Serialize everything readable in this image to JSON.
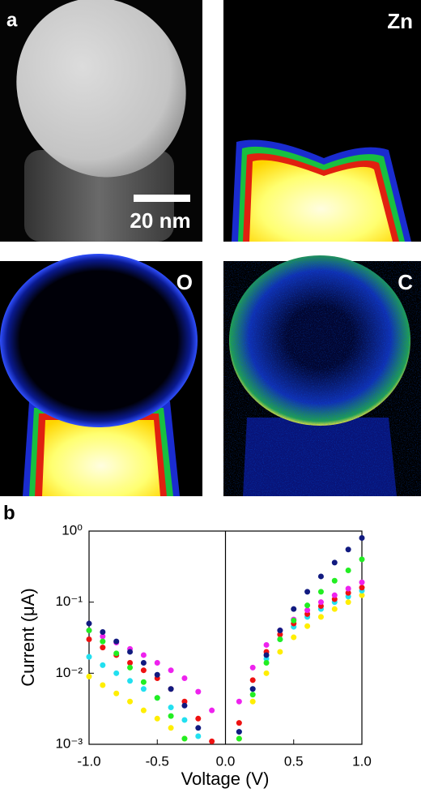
{
  "panels": [
    {
      "label": "a"
    },
    {
      "label": "Zn"
    },
    {
      "label": "O"
    },
    {
      "label": "C"
    }
  ],
  "scale_bar": "20 nm",
  "chart_data": {
    "type": "scatter",
    "label": "b",
    "x_label": "Voltage (V)",
    "y_label": "Current (μA)",
    "yscale": "log",
    "grid": false,
    "xlim": [
      -1,
      1
    ],
    "xticks": [
      {
        "value": -1,
        "label": "-1.0"
      },
      -0.5,
      {
        "value": 0,
        "label": "0.0"
      },
      0.5,
      {
        "value": 1,
        "label": "1.0"
      }
    ],
    "ylim": [
      0.001,
      1
    ],
    "yticks": [
      {
        "value": 0.001,
        "label": "10⁻³"
      },
      {
        "value": 0.01,
        "label": "10⁻²"
      },
      {
        "value": 0.1,
        "label": "10⁻¹"
      },
      {
        "value": 1,
        "label": "10⁰"
      }
    ],
    "x": [
      -1,
      -0.9,
      -0.8,
      -0.7,
      -0.6,
      -0.5,
      -0.4,
      -0.3,
      -0.2,
      -0.1,
      0,
      0.1,
      0.2,
      0.3,
      0.4,
      0.5,
      0.6,
      0.7,
      0.8,
      0.9,
      1
    ],
    "series": [
      {
        "color": "#ffee00",
        "values": [
          0.009,
          0.0068,
          0.0052,
          0.004,
          0.003,
          0.0023,
          0.0017,
          0.0012,
          null,
          null,
          null,
          0.0012,
          0.004,
          0.01,
          0.02,
          0.032,
          0.046,
          0.062,
          0.08,
          0.1,
          0.125
        ]
      },
      {
        "color": "#22e0f0",
        "values": [
          0.017,
          0.013,
          0.01,
          0.0078,
          0.006,
          0.0045,
          0.0033,
          0.0022,
          0.0013,
          null,
          null,
          0.0015,
          0.006,
          0.016,
          0.03,
          0.045,
          0.062,
          0.08,
          0.1,
          0.12,
          0.145
        ]
      },
      {
        "color": "#ee1111",
        "values": [
          0.03,
          0.023,
          0.018,
          0.014,
          0.011,
          0.0085,
          0.006,
          0.004,
          0.0023,
          0.0011,
          null,
          0.002,
          0.008,
          0.02,
          0.035,
          0.05,
          0.068,
          0.088,
          0.11,
          0.135,
          0.16
        ]
      },
      {
        "color": "#ee22ee",
        "values": [
          0.04,
          0.033,
          0.027,
          0.022,
          0.018,
          0.014,
          0.011,
          0.0085,
          0.0055,
          0.003,
          null,
          0.004,
          0.012,
          0.025,
          0.04,
          0.057,
          0.077,
          0.1,
          0.125,
          0.155,
          0.19
        ]
      },
      {
        "color": "#22ee22",
        "values": [
          0.04,
          0.028,
          0.019,
          0.012,
          0.0075,
          0.0045,
          0.0025,
          0.0012,
          null,
          null,
          null,
          0.0012,
          0.005,
          0.014,
          0.03,
          0.055,
          0.09,
          0.14,
          0.2,
          0.28,
          0.4
        ]
      },
      {
        "color": "#111a80",
        "values": [
          0.05,
          0.038,
          0.028,
          0.02,
          0.014,
          0.0095,
          0.006,
          0.0035,
          0.0017,
          null,
          null,
          0.0015,
          0.006,
          0.018,
          0.04,
          0.08,
          0.14,
          0.23,
          0.36,
          0.55,
          0.8
        ]
      }
    ]
  }
}
